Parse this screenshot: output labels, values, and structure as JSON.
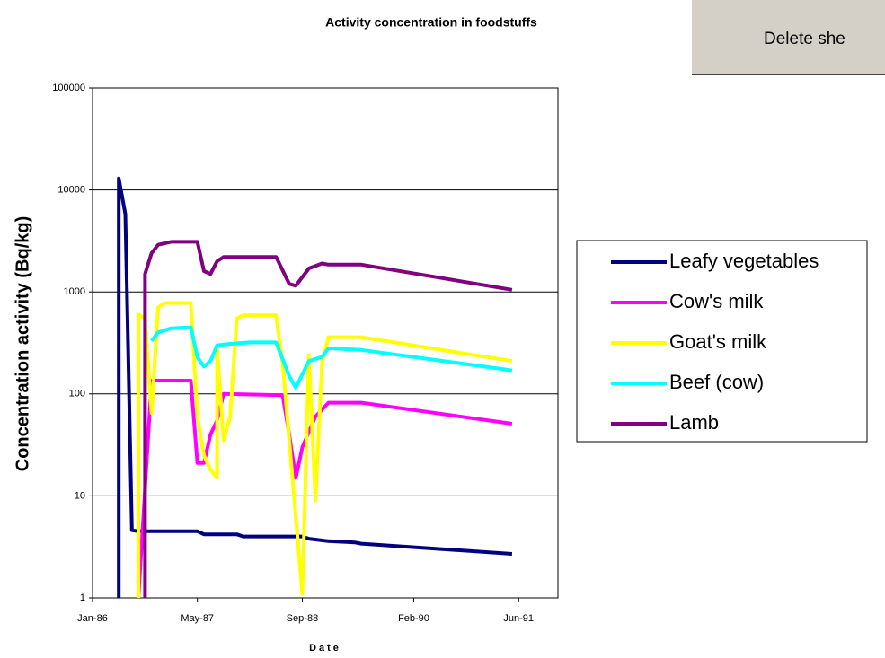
{
  "chart_data": {
    "type": "line",
    "title": "Activity concentration in foodstuffs",
    "x_label": "Date",
    "y_label": "Concentration activity (Bq/kg)",
    "yscale": "log",
    "grid": true,
    "legend": "right",
    "xlim": [
      "1986-01",
      "1991-12"
    ],
    "xticks": [
      {
        "value": "1986-01",
        "label": "Jan-86"
      },
      {
        "value": "1987-05",
        "label": "May-87"
      },
      {
        "value": "1988-09",
        "label": "Sep-88"
      },
      {
        "value": "1990-02",
        "label": "Feb-90"
      },
      {
        "value": "1991-06",
        "label": "Jun-91"
      }
    ],
    "ylim": [
      1,
      100000
    ],
    "yticks": [
      1,
      10,
      100,
      1000,
      10000,
      100000
    ],
    "series": [
      {
        "name": "Leafy vegetables",
        "color": "#000080",
        "x": [
          "1986-05",
          "1986-05",
          "1986-06",
          "1986-07",
          "1986-08",
          "1987-05",
          "1987-06",
          "1987-11",
          "1987-12",
          "1988-09",
          "1988-10",
          "1989-01",
          "1989-05",
          "1989-06",
          "1991-05"
        ],
        "values": [
          1,
          13000,
          5800,
          4.6,
          4.5,
          4.5,
          4.2,
          4.2,
          4.0,
          4.0,
          3.8,
          3.6,
          3.5,
          3.4,
          2.7
        ]
      },
      {
        "name": "Cow's milk",
        "color": "#ff00ff",
        "x": [
          "1986-08",
          "1986-10",
          "1987-04",
          "1987-05",
          "1987-06",
          "1987-07",
          "1987-08",
          "1987-09",
          "1988-06",
          "1988-07",
          "1988-08",
          "1988-09",
          "1988-11",
          "1989-01",
          "1989-06",
          "1991-05"
        ],
        "values": [
          1,
          135,
          135,
          21,
          21,
          40,
          55,
          100,
          97,
          40,
          15,
          30,
          60,
          82,
          82,
          51
        ]
      },
      {
        "name": "Goat's milk",
        "color": "#ffff00",
        "x": [
          "1986-08",
          "1986-08",
          "1986-09",
          "1986-10",
          "1986-11",
          "1986-12",
          "1987-04",
          "1987-05",
          "1987-06",
          "1987-07",
          "1987-08",
          "1987-08",
          "1987-09",
          "1987-10",
          "1987-11",
          "1987-12",
          "1988-05",
          "1988-06",
          "1988-09",
          "1988-10",
          "1988-11",
          "1988-12",
          "1989-01",
          "1989-06",
          "1991-05"
        ],
        "values": [
          1,
          600,
          550,
          65,
          700,
          780,
          780,
          60,
          25,
          18,
          15,
          280,
          35,
          60,
          550,
          590,
          590,
          200,
          1.1,
          240,
          9,
          200,
          360,
          360,
          210
        ]
      },
      {
        "name": "Beef (cow)",
        "color": "#00ffff",
        "x": [
          "1986-10",
          "1986-11",
          "1987-01",
          "1987-04",
          "1987-05",
          "1987-06",
          "1987-07",
          "1987-08",
          "1987-10",
          "1988-01",
          "1988-05",
          "1988-07",
          "1988-08",
          "1988-10",
          "1988-12",
          "1989-01",
          "1989-06",
          "1991-05"
        ],
        "values": [
          330,
          400,
          440,
          450,
          230,
          185,
          210,
          300,
          310,
          320,
          320,
          150,
          115,
          210,
          230,
          280,
          270,
          170
        ]
      },
      {
        "name": "Lamb",
        "color": "#800080",
        "x": [
          "1986-09",
          "1986-09",
          "1986-10",
          "1986-11",
          "1987-01",
          "1987-05",
          "1987-06",
          "1987-07",
          "1987-08",
          "1987-09",
          "1988-05",
          "1988-07",
          "1988-08",
          "1988-10",
          "1988-12",
          "1989-01",
          "1989-06",
          "1991-05"
        ],
        "values": [
          1,
          1500,
          2400,
          2900,
          3100,
          3100,
          1600,
          1500,
          2000,
          2200,
          2200,
          1200,
          1150,
          1700,
          1900,
          1850,
          1850,
          1050
        ]
      }
    ]
  },
  "button": {
    "label": "Delete she"
  }
}
